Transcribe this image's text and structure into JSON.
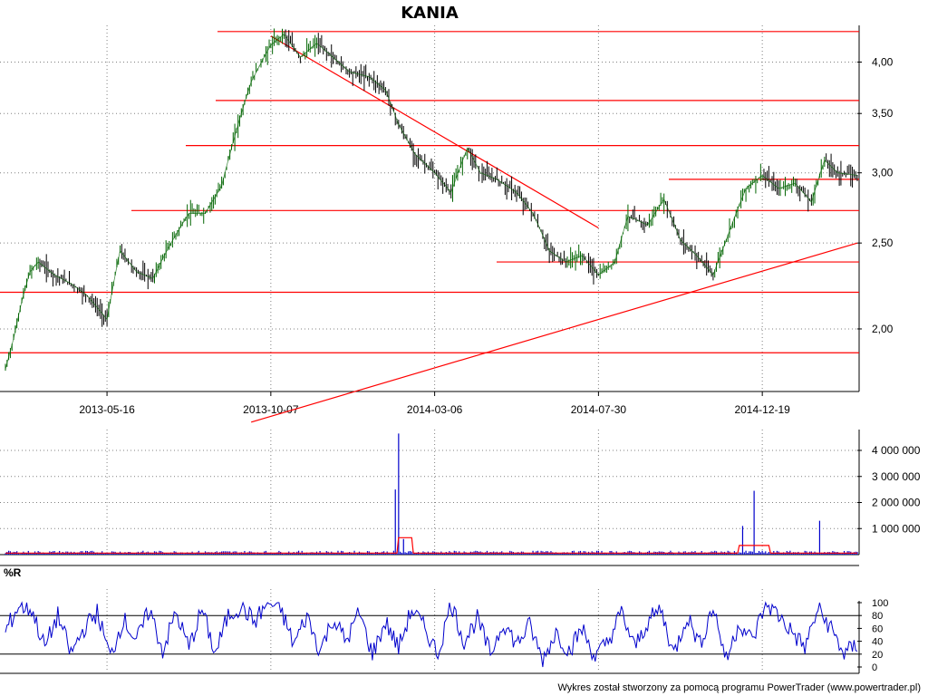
{
  "title": "KANIA",
  "footer": "Wykres został stworzony za pomocą programu PowerTrader (www.powertrader.pl)",
  "colors": {
    "price": "#006400",
    "price_down": "#000000",
    "levels": "#ff0000",
    "volume": "#0000cc",
    "volume_avg": "#ff0000",
    "wr": "#0000cc",
    "grid": "#808080"
  },
  "chart_data": [
    {
      "type": "line",
      "panel": "price",
      "title": "KANIA",
      "xlabel": "",
      "ylabel": "",
      "x_ticks": [
        "2013-05-16",
        "2013-10-07",
        "2014-03-06",
        "2014-07-30",
        "2014-12-19"
      ],
      "y_ticks": [
        "2,00",
        "2,50",
        "3,00",
        "3,50",
        "4,00"
      ],
      "ylim": [
        1.7,
        4.4
      ],
      "grid": true,
      "x_range_index": [
        0,
        520
      ],
      "x_tick_index": [
        62,
        162,
        262,
        362,
        462
      ],
      "series": [
        {
          "values_index": [
            0,
            5,
            10,
            15,
            20,
            30,
            40,
            50,
            62,
            70,
            80,
            90,
            100,
            112,
            122,
            132,
            142,
            150,
            162,
            170,
            180,
            190,
            200,
            210,
            222,
            232,
            240,
            250,
            262,
            272,
            282,
            290,
            300,
            312,
            322,
            332,
            342,
            352,
            362,
            372,
            380,
            392,
            402,
            412,
            422,
            432,
            440,
            452,
            462,
            472,
            482,
            492,
            500,
            508,
            520
          ],
          "values": [
            1.8,
            1.95,
            2.15,
            2.32,
            2.38,
            2.3,
            2.25,
            2.18,
            2.05,
            2.45,
            2.32,
            2.28,
            2.48,
            2.7,
            2.7,
            2.9,
            3.4,
            3.8,
            4.18,
            4.3,
            4.05,
            4.2,
            4.05,
            3.9,
            3.85,
            3.72,
            3.4,
            3.15,
            3.0,
            2.85,
            3.2,
            3.0,
            2.95,
            2.85,
            2.7,
            2.45,
            2.38,
            2.42,
            2.3,
            2.38,
            2.68,
            2.62,
            2.8,
            2.52,
            2.42,
            2.3,
            2.52,
            2.88,
            2.98,
            2.88,
            2.92,
            2.78,
            3.1,
            3.0,
            2.98
          ]
        }
      ],
      "levels": [
        4.33,
        3.62,
        3.22,
        2.72,
        2.38,
        2.2,
        1.88,
        2.95
      ],
      "trendlines": [
        {
          "from": [
            162,
            4.28
          ],
          "to": [
            362,
            2.6
          ]
        },
        {
          "from": [
            150,
            1.57
          ],
          "to": [
            520,
            2.5
          ]
        }
      ]
    },
    {
      "type": "bar",
      "panel": "volume",
      "xlabel": "",
      "ylabel": "",
      "y_ticks": [
        "1 000 000",
        "2 000 000",
        "3 000 000",
        "4 000 000"
      ],
      "ylim": [
        0,
        4800000
      ],
      "spikes": [
        {
          "index": 240,
          "value": 4650000
        },
        {
          "index": 238,
          "value": 2500000
        },
        {
          "index": 457,
          "value": 2450000
        },
        {
          "index": 450,
          "value": 1100000
        },
        {
          "index": 497,
          "value": 1300000
        },
        {
          "index": 243,
          "value": 600000
        }
      ],
      "baseline_volume": 100000,
      "avg_bump": [
        {
          "from": 240,
          "to": 248,
          "value": 650000
        },
        {
          "from": 448,
          "to": 466,
          "value": 350000
        }
      ]
    },
    {
      "type": "line",
      "panel": "indicator",
      "label": "%R",
      "xlabel": "",
      "ylabel": "",
      "y_ticks": [
        "0",
        "20",
        "40",
        "60",
        "80",
        "100"
      ],
      "ylim": [
        0,
        100
      ],
      "reference_lines": [
        20,
        80
      ],
      "series": [
        {
          "values_index": [
            0,
            8,
            16,
            24,
            32,
            40,
            48,
            56,
            64,
            72,
            80,
            88,
            96,
            104,
            112,
            120,
            128,
            136,
            144,
            152,
            160,
            168,
            176,
            184,
            192,
            200,
            208,
            216,
            224,
            232,
            240,
            248,
            256,
            264,
            272,
            280,
            288,
            296,
            304,
            312,
            320,
            328,
            336,
            344,
            352,
            360,
            368,
            376,
            384,
            392,
            400,
            408,
            416,
            424,
            432,
            440,
            448,
            456,
            464,
            472,
            480,
            488,
            496,
            504,
            512,
            520
          ],
          "values": [
            55,
            95,
            90,
            30,
            80,
            20,
            60,
            85,
            15,
            75,
            40,
            90,
            25,
            85,
            30,
            90,
            20,
            80,
            95,
            70,
            100,
            90,
            35,
            80,
            25,
            75,
            40,
            85,
            20,
            70,
            30,
            90,
            60,
            20,
            100,
            40,
            75,
            20,
            70,
            35,
            65,
            10,
            55,
            25,
            60,
            15,
            40,
            85,
            30,
            70,
            90,
            20,
            80,
            35,
            95,
            10,
            70,
            40,
            100,
            80,
            55,
            30,
            90,
            60,
            20,
            35
          ]
        }
      ]
    }
  ]
}
